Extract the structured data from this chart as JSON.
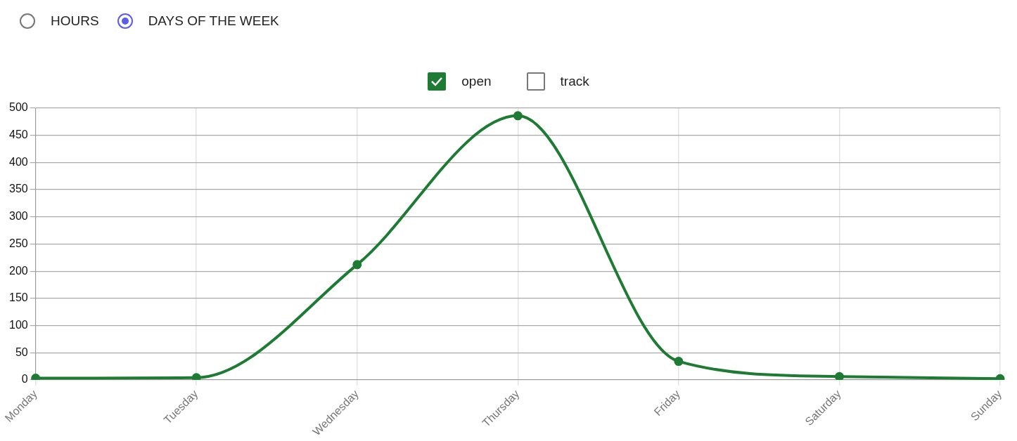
{
  "chart_data": {
    "type": "line",
    "categories": [
      "Monday",
      "Tuesday",
      "Wednesday",
      "Thursday",
      "Friday",
      "Saturday",
      "Sunday"
    ],
    "series": [
      {
        "name": "open",
        "color": "#1e7b34",
        "values": [
          3,
          4,
          212,
          486,
          34,
          6,
          2
        ]
      },
      {
        "name": "track",
        "values": [
          null,
          null,
          null,
          null,
          null,
          null,
          null
        ]
      }
    ],
    "ylim": [
      0,
      500
    ],
    "yticks": [
      0,
      50,
      100,
      150,
      200,
      250,
      300,
      350,
      400,
      450,
      500
    ],
    "grid": true,
    "legend": "top",
    "marker": "circle",
    "line_style": "solid",
    "annotations": [
      "HOURS",
      "DAYS OF THE WEEK"
    ]
  }
}
